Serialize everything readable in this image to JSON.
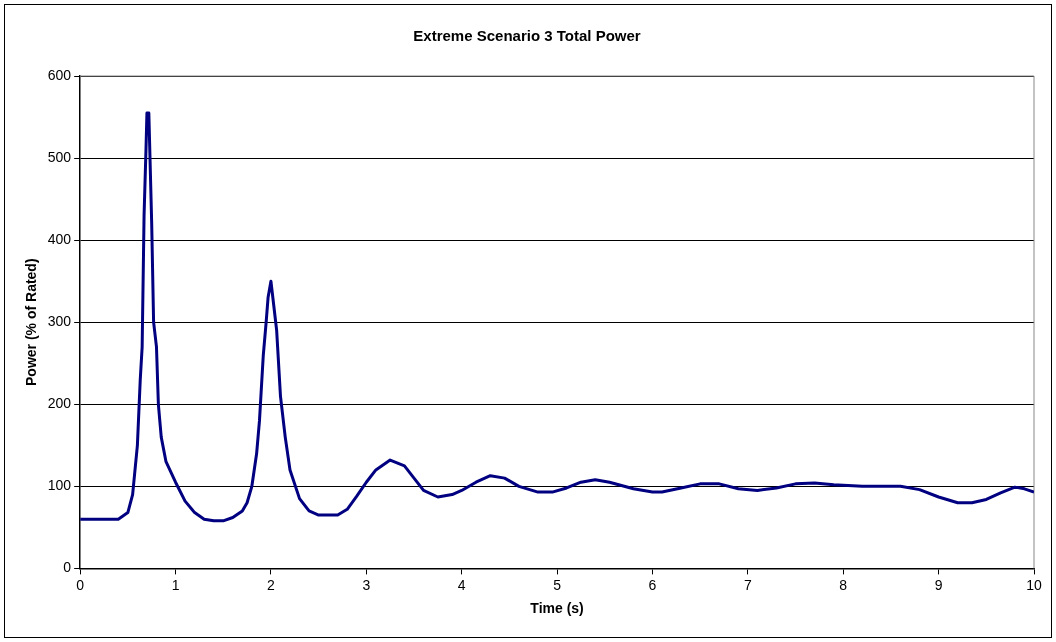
{
  "chart_data": {
    "type": "line",
    "title": "Extreme Scenario 3 Total Power",
    "xlabel": "Time (s)",
    "ylabel": "Power (% of Rated)",
    "xlim": [
      0,
      10
    ],
    "xticks": [
      0,
      1,
      2,
      3,
      4,
      5,
      6,
      7,
      8,
      9,
      10
    ],
    "ylim": [
      0,
      600
    ],
    "yticks": [
      0,
      100,
      200,
      300,
      400,
      500,
      600
    ],
    "grid": "y",
    "legend": false,
    "marker": "none",
    "line_style": "solid",
    "series": [
      {
        "color": "#000080",
        "x": [
          0,
          0.4,
          0.5,
          0.55,
          0.6,
          0.63,
          0.65,
          0.67,
          0.69,
          0.7,
          0.72,
          0.73,
          0.75,
          0.77,
          0.8,
          0.82,
          0.85,
          0.9,
          1.0,
          1.1,
          1.2,
          1.3,
          1.4,
          1.5,
          1.6,
          1.7,
          1.75,
          1.8,
          1.85,
          1.88,
          1.92,
          1.95,
          1.97,
          2.0,
          2.03,
          2.06,
          2.1,
          2.15,
          2.2,
          2.3,
          2.4,
          2.5,
          2.7,
          2.8,
          2.9,
          3.0,
          3.1,
          3.25,
          3.4,
          3.5,
          3.6,
          3.75,
          3.9,
          4.0,
          4.15,
          4.3,
          4.45,
          4.6,
          4.8,
          4.95,
          5.1,
          5.25,
          5.4,
          5.55,
          5.8,
          6.0,
          6.1,
          6.3,
          6.5,
          6.7,
          6.9,
          7.1,
          7.3,
          7.5,
          7.7,
          7.9,
          8.2,
          8.6,
          8.8,
          9.0,
          9.2,
          9.35,
          9.5,
          9.65,
          9.8,
          9.9,
          10
        ],
        "values": [
          60,
          60,
          68,
          90,
          150,
          230,
          270,
          430,
          510,
          555,
          555,
          510,
          420,
          300,
          270,
          200,
          160,
          130,
          105,
          82,
          68,
          60,
          58,
          58,
          62,
          70,
          80,
          100,
          140,
          180,
          260,
          300,
          330,
          350,
          320,
          290,
          210,
          160,
          120,
          85,
          70,
          65,
          65,
          72,
          88,
          105,
          120,
          132,
          125,
          110,
          95,
          87,
          90,
          95,
          105,
          113,
          110,
          100,
          93,
          93,
          98,
          105,
          108,
          105,
          97,
          93,
          93,
          98,
          103,
          103,
          97,
          95,
          98,
          103,
          104,
          102,
          100,
          100,
          96,
          87,
          80,
          80,
          84,
          92,
          99,
          97,
          93
        ]
      }
    ]
  }
}
